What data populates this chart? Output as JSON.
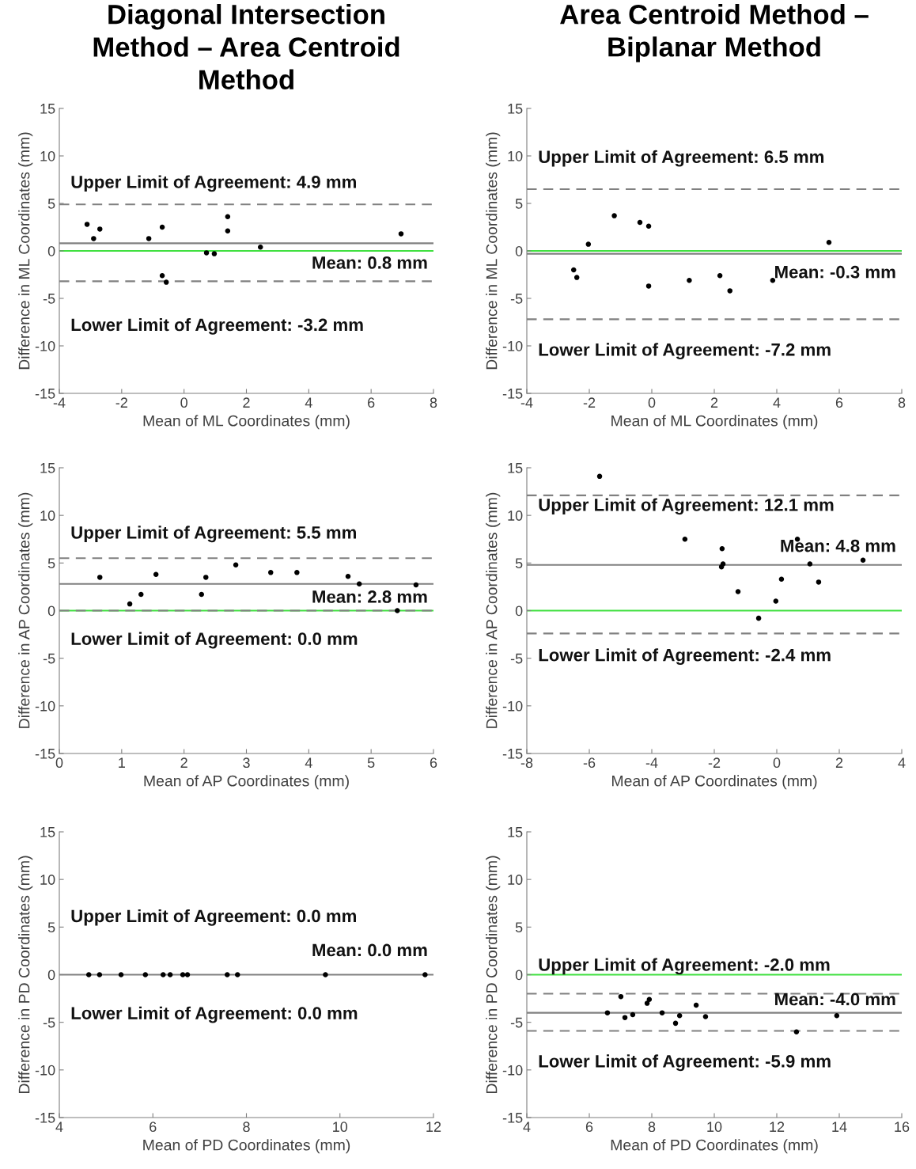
{
  "chart_data": [
    {
      "type": "scatter",
      "title": "Diagonal Intersection\nMethod – Area Centroid\nMethod",
      "xlabel": "Mean of ML Coordinates (mm)",
      "ylabel": "Difference in ML Coordinates (mm)",
      "marker": "circle",
      "series": [
        {
          "color": "#000000",
          "x": [
            -3.11,
            -2.9,
            -2.7,
            -1.13,
            -0.7,
            -0.7,
            -0.57,
            0.72,
            0.97,
            1.4,
            1.4,
            2.45,
            6.96
          ],
          "values": [
            2.8,
            1.3,
            2.3,
            1.3,
            2.5,
            -2.6,
            -3.3,
            -0.2,
            -0.3,
            3.6,
            2.1,
            0.4,
            1.8
          ]
        }
      ],
      "xlim": [
        -4,
        8
      ],
      "xticks": [
        -4,
        -2,
        0,
        2,
        4,
        6,
        8
      ],
      "ylim": [
        -15,
        15
      ],
      "yticks": [
        -15,
        -10,
        -5,
        0,
        5,
        10,
        15
      ],
      "ref_lines": [
        {
          "axis": "y",
          "value": 4.9,
          "label": "Upper Limit of Agreement: 4.9 mm",
          "color": "#808080",
          "line_style": "dashed"
        },
        {
          "axis": "y",
          "value": 0.8,
          "label": "Mean: 0.8 mm",
          "color": "#808080",
          "line_style": "solid"
        },
        {
          "axis": "y",
          "value": -3.2,
          "label": "Lower Limit of Agreement: -3.2 mm",
          "color": "#808080",
          "line_style": "dashed"
        },
        {
          "axis": "y",
          "value": 0,
          "color": "#40e040",
          "line_style": "solid"
        }
      ]
    },
    {
      "type": "scatter",
      "title": "Area Centroid Method –\nBiplanar Method",
      "xlabel": "Mean of ML Coordinates (mm)",
      "ylabel": "Difference in ML Coordinates (mm)",
      "marker": "circle",
      "series": [
        {
          "color": "#000000",
          "x": [
            -2.5,
            -2.4,
            -2.03,
            -1.2,
            -0.38,
            -0.1,
            -0.1,
            1.2,
            2.18,
            2.5,
            3.87,
            5.67
          ],
          "values": [
            -2.0,
            -2.8,
            0.7,
            3.7,
            3.0,
            2.6,
            -3.7,
            -3.1,
            -2.6,
            -4.2,
            -3.1,
            0.9
          ]
        }
      ],
      "xlim": [
        -4,
        8
      ],
      "xticks": [
        -4,
        -2,
        0,
        2,
        4,
        6,
        8
      ],
      "ylim": [
        -15,
        15
      ],
      "yticks": [
        -15,
        -10,
        -5,
        0,
        5,
        10,
        15
      ],
      "ref_lines": [
        {
          "axis": "y",
          "value": 6.5,
          "label": "Upper Limit of Agreement: 6.5 mm",
          "color": "#808080",
          "line_style": "dashed"
        },
        {
          "axis": "y",
          "value": -0.3,
          "label": "Mean: -0.3 mm",
          "color": "#808080",
          "line_style": "solid"
        },
        {
          "axis": "y",
          "value": -7.2,
          "label": "Lower Limit of Agreement: -7.2 mm",
          "color": "#808080",
          "line_style": "dashed"
        },
        {
          "axis": "y",
          "value": 0,
          "color": "#40e040",
          "line_style": "solid"
        }
      ]
    },
    {
      "type": "scatter",
      "xlabel": "Mean of AP Coordinates (mm)",
      "ylabel": "Difference in AP Coordinates (mm)",
      "marker": "circle",
      "series": [
        {
          "color": "#000000",
          "x": [
            0.65,
            1.13,
            1.31,
            1.55,
            2.28,
            2.35,
            2.83,
            3.39,
            3.81,
            4.63,
            4.81,
            5.42,
            5.72
          ],
          "values": [
            3.5,
            0.7,
            1.7,
            3.8,
            1.7,
            3.5,
            4.8,
            4.0,
            4.0,
            3.6,
            2.8,
            0.0,
            2.7
          ]
        }
      ],
      "xlim": [
        0,
        6
      ],
      "xticks": [
        0,
        1,
        2,
        3,
        4,
        5,
        6
      ],
      "ylim": [
        -15,
        15
      ],
      "yticks": [
        -15,
        -10,
        -5,
        0,
        5,
        10,
        15
      ],
      "ref_lines": [
        {
          "axis": "y",
          "value": 5.5,
          "label": "Upper Limit of Agreement: 5.5 mm",
          "color": "#808080",
          "line_style": "dashed"
        },
        {
          "axis": "y",
          "value": 2.8,
          "label": "Mean: 2.8 mm",
          "color": "#808080",
          "line_style": "solid"
        },
        {
          "axis": "y",
          "value": 0,
          "color": "#40e040",
          "line_style": "solid"
        },
        {
          "axis": "y",
          "value": 0.0,
          "label": "Lower Limit of Agreement: 0.0 mm",
          "color": "#808080",
          "line_style": "dashed"
        }
      ]
    },
    {
      "type": "scatter",
      "xlabel": "Mean of AP Coordinates (mm)",
      "ylabel": "Difference in AP Coordinates (mm)",
      "marker": "circle",
      "series": [
        {
          "color": "#000000",
          "x": [
            -5.67,
            -2.94,
            -1.75,
            -1.72,
            -1.77,
            -1.24,
            -0.58,
            -0.03,
            0.15,
            0.66,
            1.06,
            1.34,
            2.76
          ],
          "values": [
            14.1,
            7.5,
            6.5,
            4.9,
            4.6,
            2.0,
            -0.8,
            1.0,
            3.3,
            7.5,
            4.9,
            3.0,
            5.3
          ]
        }
      ],
      "xlim": [
        -8,
        4
      ],
      "xticks": [
        -8,
        -6,
        -4,
        -2,
        0,
        2,
        4
      ],
      "ylim": [
        -15,
        15
      ],
      "yticks": [
        -15,
        -10,
        -5,
        0,
        5,
        10,
        15
      ],
      "ref_lines": [
        {
          "axis": "y",
          "value": 12.1,
          "label": "Upper Limit of Agreement: 12.1 mm",
          "color": "#808080",
          "line_style": "dashed"
        },
        {
          "axis": "y",
          "value": 4.8,
          "label": "Mean: 4.8 mm",
          "color": "#808080",
          "line_style": "solid"
        },
        {
          "axis": "y",
          "value": -2.4,
          "label": "Lower Limit of Agreement: -2.4 mm",
          "color": "#808080",
          "line_style": "dashed"
        },
        {
          "axis": "y",
          "value": 0,
          "color": "#40e040",
          "line_style": "solid"
        }
      ]
    },
    {
      "type": "scatter",
      "xlabel": "Mean of PD Coordinates (mm)",
      "ylabel": "Difference in PD Coordinates (mm)",
      "marker": "circle",
      "series": [
        {
          "color": "#000000",
          "x": [
            4.63,
            4.86,
            5.32,
            5.84,
            6.22,
            6.37,
            6.64,
            6.74,
            7.59,
            7.81,
            9.69,
            11.82
          ],
          "values": [
            0,
            0,
            0,
            0,
            0,
            0,
            0,
            0,
            0,
            0,
            0,
            0
          ]
        }
      ],
      "xlim": [
        4,
        12
      ],
      "xticks": [
        4,
        6,
        8,
        10,
        12
      ],
      "ylim": [
        -15,
        15
      ],
      "yticks": [
        -15,
        -10,
        -5,
        0,
        5,
        10,
        15
      ],
      "annotations": [
        "Upper Limit of Agreement: 0.0 mm",
        "Lower Limit of Agreement: 0.0 mm"
      ],
      "ref_lines": [
        {
          "axis": "y",
          "value": 0.0,
          "label": "Mean: 0.0 mm",
          "color": "#808080",
          "line_style": "solid"
        }
      ]
    },
    {
      "type": "scatter",
      "xlabel": "Mean of PD Coordinates (mm)",
      "ylabel": "Difference in PD Coordinates (mm)",
      "marker": "circle",
      "series": [
        {
          "color": "#000000",
          "x": [
            6.58,
            7.01,
            7.14,
            7.39,
            7.85,
            7.92,
            8.33,
            8.76,
            8.89,
            9.42,
            9.72,
            12.63,
            13.92
          ],
          "values": [
            -4.0,
            -2.3,
            -4.5,
            -4.2,
            -3.0,
            -2.6,
            -4.0,
            -5.1,
            -4.3,
            -3.2,
            -4.4,
            -6.0,
            -4.3
          ]
        }
      ],
      "xlim": [
        4,
        16
      ],
      "xticks": [
        4,
        6,
        8,
        10,
        12,
        14,
        16
      ],
      "ylim": [
        -15,
        15
      ],
      "yticks": [
        -15,
        -10,
        -5,
        0,
        5,
        10,
        15
      ],
      "ref_lines": [
        {
          "axis": "y",
          "value": 0,
          "color": "#40e040",
          "line_style": "solid"
        },
        {
          "axis": "y",
          "value": -2.0,
          "label": "Upper Limit of Agreement: -2.0 mm",
          "color": "#808080",
          "line_style": "dashed"
        },
        {
          "axis": "y",
          "value": -4.0,
          "label": "Mean: -4.0 mm",
          "color": "#808080",
          "line_style": "solid"
        },
        {
          "axis": "y",
          "value": -5.9,
          "label": "Lower Limit of Agreement: -5.9 mm",
          "color": "#808080",
          "line_style": "dashed"
        }
      ]
    }
  ]
}
